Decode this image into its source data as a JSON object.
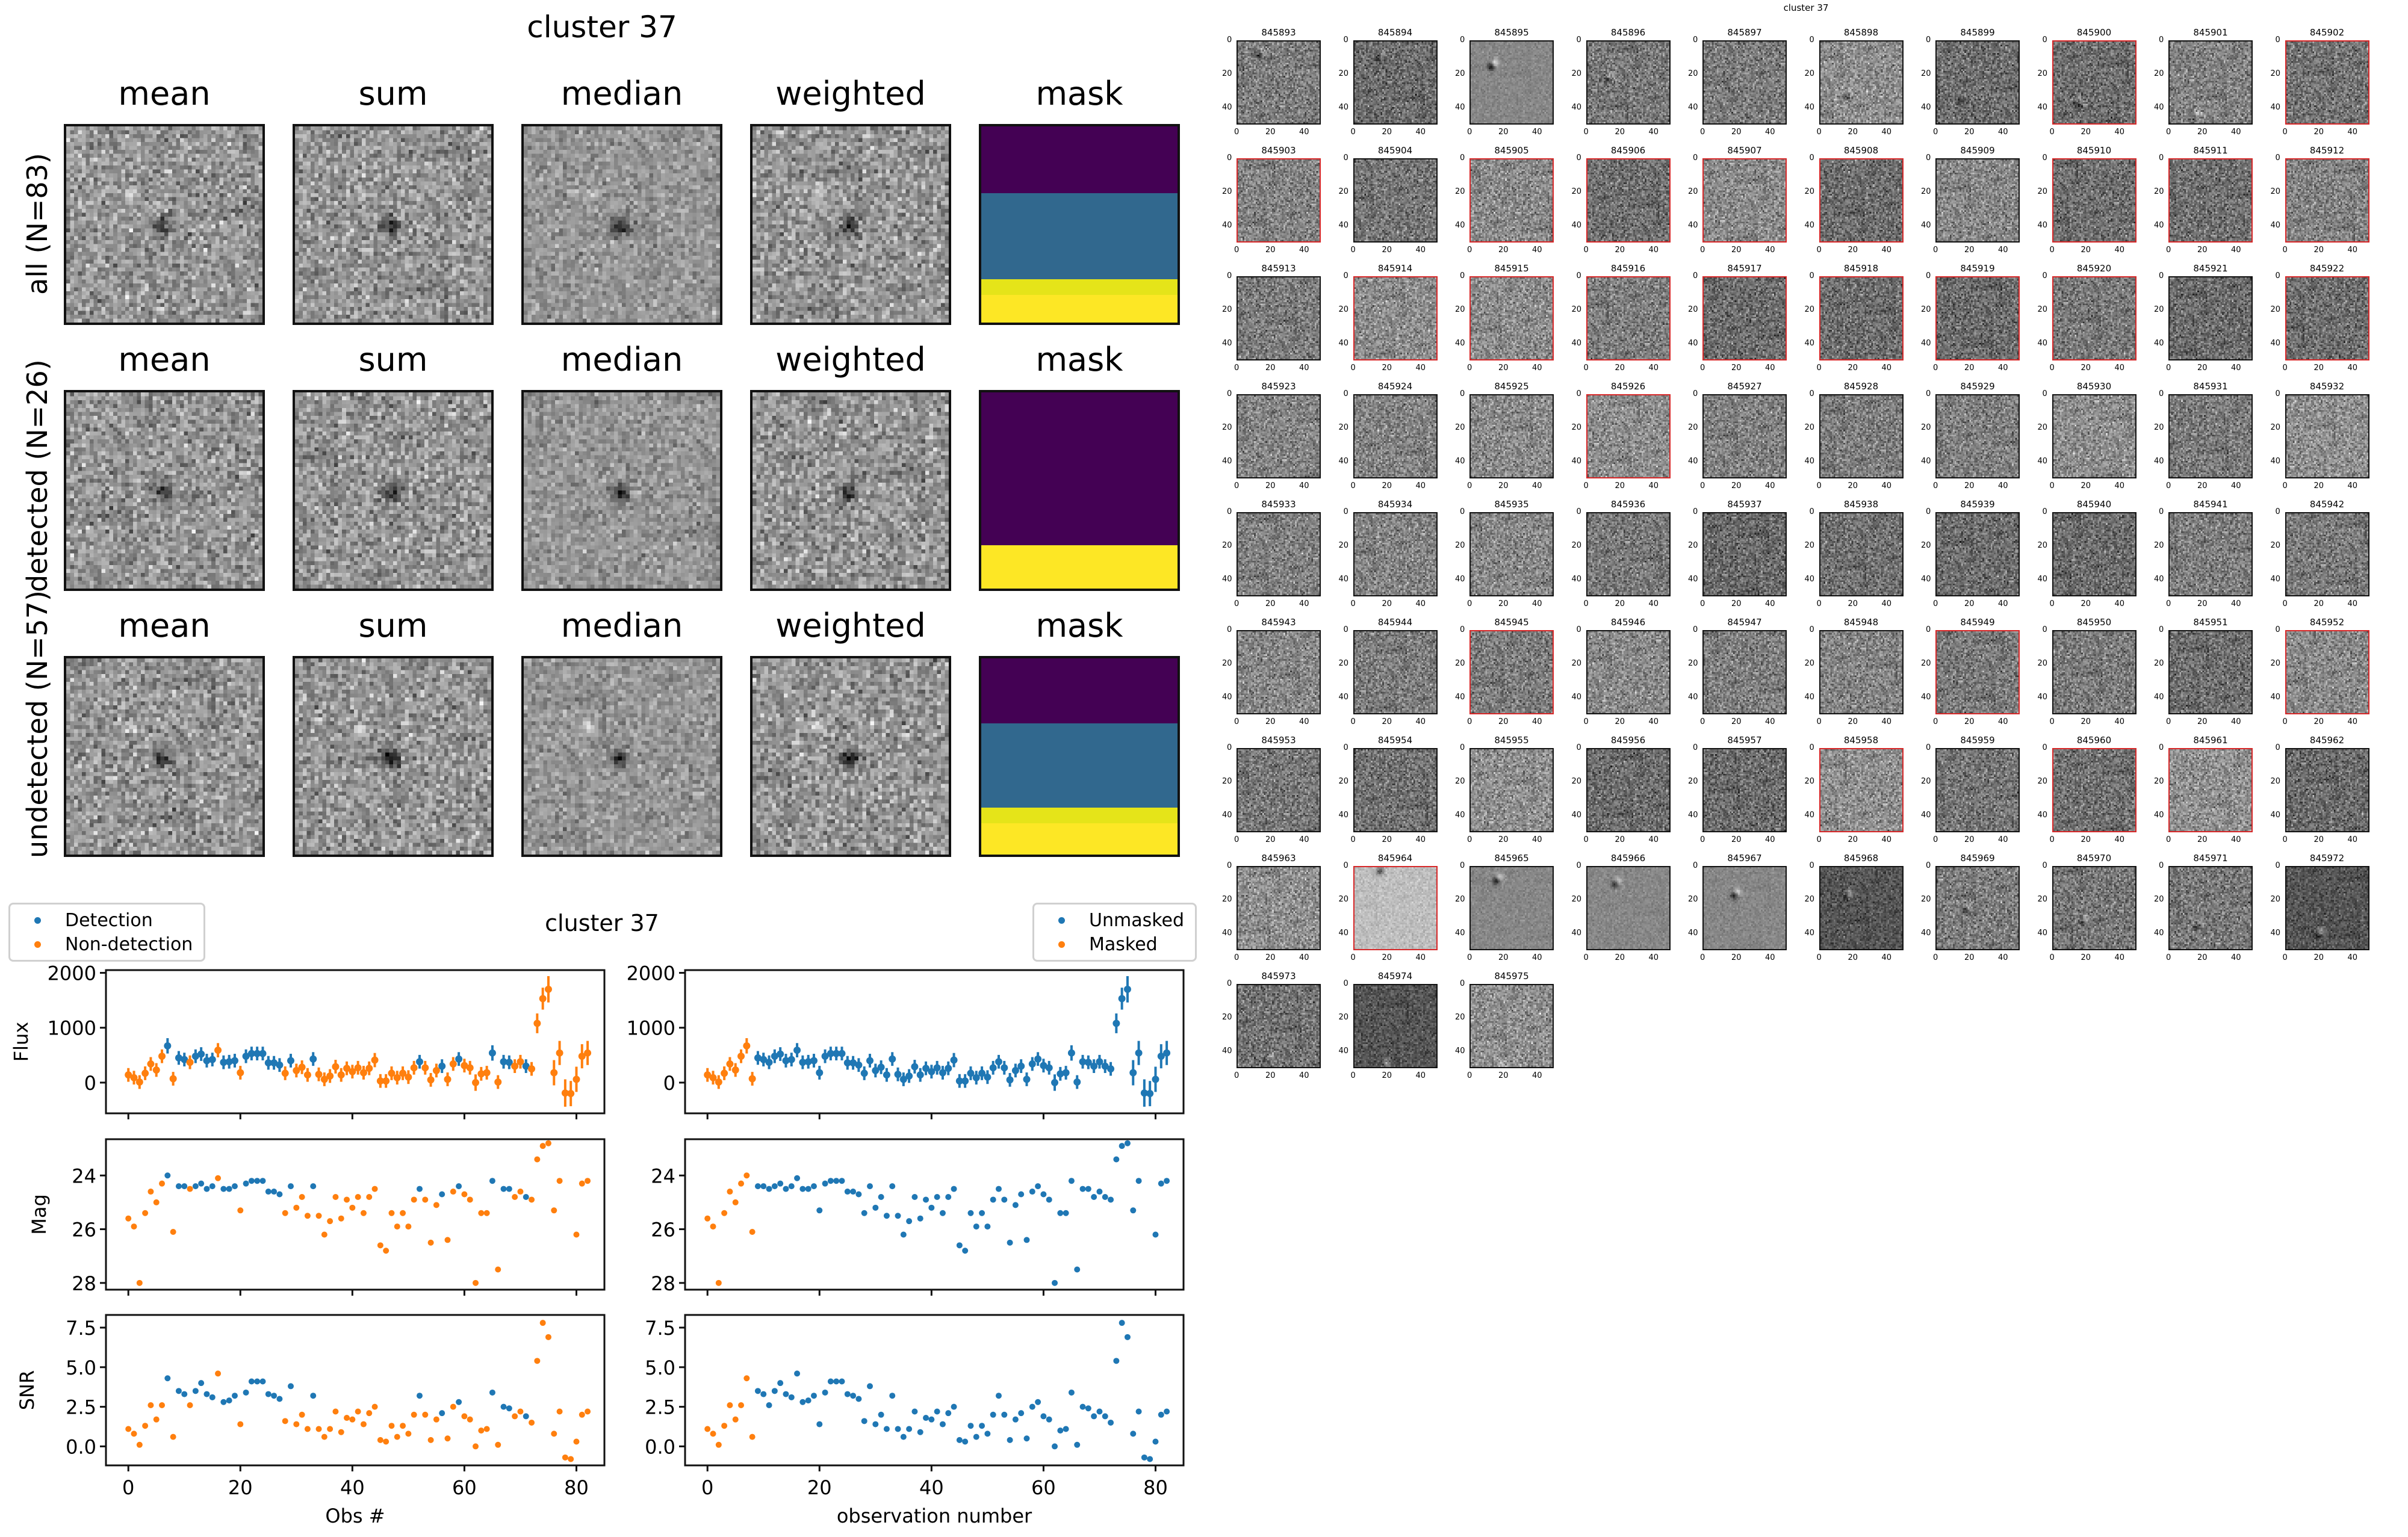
{
  "stack_figure": {
    "title": "cluster 37",
    "column_titles": [
      "mean",
      "sum",
      "median",
      "weighted",
      "mask"
    ],
    "rows": [
      {
        "label": "all (N=83)",
        "mask_bands": [
          {
            "color": "#440154",
            "fraction": 0.34
          },
          {
            "color": "#31688e",
            "fraction": 0.44
          },
          {
            "color": "#e5e419",
            "fraction": 0.08
          },
          {
            "color": "#fde725",
            "fraction": 0.14
          }
        ]
      },
      {
        "label": "detected (N=26)",
        "mask_bands": [
          {
            "color": "#440154",
            "fraction": 0.78
          },
          {
            "color": "#fde725",
            "fraction": 0.22
          }
        ]
      },
      {
        "label": "undetected (N=57)",
        "mask_bands": [
          {
            "color": "#440154",
            "fraction": 0.33
          },
          {
            "color": "#31688e",
            "fraction": 0.43
          },
          {
            "color": "#e5e419",
            "fraction": 0.08
          },
          {
            "color": "#fde725",
            "fraction": 0.16
          }
        ]
      }
    ]
  },
  "thumbnail_grid": {
    "title": "cluster 37",
    "axis_ticks": [
      "0",
      "20",
      "40"
    ],
    "first_id": 845893,
    "ids": [
      "845893",
      "845894",
      "845895",
      "845896",
      "845897",
      "845898",
      "845899",
      "845900",
      "845901",
      "845902",
      "845903",
      "845904",
      "845905",
      "845906",
      "845907",
      "845908",
      "845909",
      "845910",
      "845911",
      "845912",
      "845913",
      "845914",
      "845915",
      "845916",
      "845917",
      "845918",
      "845919",
      "845920",
      "845921",
      "845922",
      "845923",
      "845924",
      "845925",
      "845926",
      "845927",
      "845928",
      "845929",
      "845930",
      "845931",
      "845932",
      "845933",
      "845934",
      "845935",
      "845936",
      "845937",
      "845938",
      "845939",
      "845940",
      "845941",
      "845942",
      "845943",
      "845944",
      "845945",
      "845946",
      "845947",
      "845948",
      "845949",
      "845950",
      "845951",
      "845952",
      "845953",
      "845954",
      "845955",
      "845956",
      "845957",
      "845958",
      "845959",
      "845960",
      "845961",
      "845962",
      "845963",
      "845964",
      "845965",
      "845966",
      "845967",
      "845968",
      "845969",
      "845970",
      "845971",
      "845972",
      "845973",
      "845974",
      "845975"
    ],
    "masked_ids": [
      "845900",
      "845902",
      "845903",
      "845905",
      "845906",
      "845907",
      "845908",
      "845910",
      "845911",
      "845912",
      "845914",
      "845915",
      "845916",
      "845917",
      "845918",
      "845919",
      "845920",
      "845922",
      "845926",
      "845945",
      "845949",
      "845952",
      "845958",
      "845960",
      "845961",
      "845964"
    ],
    "highlight_color": "#d62728"
  },
  "chart_data": [
    {
      "type": "scatter",
      "title": "cluster 37",
      "panels": [
        "Flux",
        "Mag",
        "SNR"
      ],
      "xlabel": "Obs #",
      "xlim": [
        -4,
        85
      ],
      "xticks": [
        0,
        20,
        40,
        60,
        80
      ],
      "legend": {
        "placement": "top-left",
        "entries": [
          {
            "name": "Detection",
            "color": "#1f77b4"
          },
          {
            "name": "Non-detection",
            "color": "#ff7f0e"
          }
        ]
      },
      "series_split": "detection"
    },
    {
      "type": "scatter",
      "title": "",
      "panels": [
        "Flux",
        "Mag",
        "SNR"
      ],
      "xlabel": "observation number",
      "xlim": [
        -4,
        85
      ],
      "xticks": [
        0,
        20,
        40,
        60,
        80
      ],
      "legend": {
        "placement": "top-right",
        "entries": [
          {
            "name": "Unmasked",
            "color": "#1f77b4"
          },
          {
            "name": "Masked",
            "color": "#ff7f0e"
          }
        ]
      },
      "series_split": "masked"
    }
  ],
  "observations": {
    "obs": [
      0,
      1,
      2,
      3,
      4,
      5,
      6,
      7,
      8,
      9,
      10,
      11,
      12,
      13,
      14,
      15,
      16,
      17,
      18,
      19,
      20,
      21,
      22,
      23,
      24,
      25,
      26,
      27,
      28,
      29,
      30,
      31,
      32,
      33,
      34,
      35,
      36,
      37,
      38,
      39,
      40,
      41,
      42,
      43,
      44,
      45,
      46,
      47,
      48,
      49,
      50,
      51,
      52,
      53,
      54,
      55,
      56,
      57,
      58,
      59,
      60,
      61,
      62,
      63,
      64,
      65,
      66,
      67,
      68,
      69,
      70,
      71,
      72,
      73,
      74,
      75,
      76,
      77,
      78,
      79,
      80,
      81,
      82
    ],
    "flux": [
      140,
      90,
      10,
      170,
      340,
      230,
      480,
      670,
      70,
      450,
      420,
      370,
      480,
      520,
      400,
      420,
      590,
      370,
      380,
      400,
      180,
      480,
      530,
      530,
      530,
      360,
      360,
      320,
      170,
      400,
      220,
      280,
      140,
      430,
      150,
      60,
      120,
      290,
      140,
      260,
      200,
      270,
      180,
      260,
      410,
      30,
      30,
      170,
      90,
      170,
      100,
      270,
      380,
      270,
      50,
      220,
      300,
      60,
      340,
      430,
      310,
      270,
      0,
      160,
      180,
      540,
      10,
      380,
      370,
      300,
      380,
      300,
      250,
      1080,
      1530,
      1700,
      180,
      540,
      -190,
      -200,
      60,
      480,
      540
    ],
    "flux_err": [
      125,
      125,
      125,
      125,
      125,
      125,
      125,
      140,
      125,
      125,
      125,
      125,
      125,
      125,
      125,
      125,
      130,
      125,
      125,
      125,
      125,
      125,
      125,
      125,
      125,
      125,
      125,
      125,
      125,
      125,
      125,
      125,
      125,
      125,
      125,
      125,
      125,
      125,
      125,
      125,
      125,
      125,
      125,
      125,
      130,
      125,
      125,
      125,
      125,
      125,
      125,
      125,
      125,
      125,
      125,
      125,
      125,
      125,
      125,
      125,
      125,
      125,
      150,
      125,
      125,
      140,
      125,
      125,
      125,
      125,
      125,
      125,
      125,
      180,
      200,
      240,
      230,
      220,
      250,
      230,
      230,
      220,
      220
    ],
    "mag": [
      25.6,
      25.9,
      28.0,
      25.4,
      24.6,
      25.0,
      24.3,
      24.0,
      26.1,
      24.4,
      24.4,
      24.5,
      24.4,
      24.3,
      24.5,
      24.4,
      24.1,
      24.5,
      24.5,
      24.4,
      25.3,
      24.3,
      24.2,
      24.2,
      24.2,
      24.6,
      24.6,
      24.7,
      25.4,
      24.4,
      25.2,
      24.8,
      25.5,
      24.4,
      25.5,
      26.2,
      25.7,
      24.8,
      25.6,
      24.9,
      25.2,
      24.8,
      25.4,
      24.8,
      24.5,
      26.6,
      26.8,
      25.4,
      25.9,
      25.4,
      25.9,
      24.9,
      24.5,
      24.9,
      26.5,
      25.1,
      24.7,
      26.4,
      24.6,
      24.4,
      24.7,
      24.9,
      28.0,
      25.4,
      25.4,
      24.2,
      27.5,
      24.5,
      24.5,
      24.8,
      24.6,
      24.8,
      24.9,
      23.4,
      22.9,
      22.8,
      25.3,
      24.2,
      null,
      null,
      26.2,
      24.3,
      24.2
    ],
    "snr": [
      1.1,
      0.8,
      0.1,
      1.3,
      2.6,
      1.7,
      2.6,
      4.3,
      0.6,
      3.5,
      3.3,
      2.6,
      3.5,
      4.0,
      3.3,
      3.1,
      4.6,
      2.8,
      2.9,
      3.2,
      1.4,
      3.4,
      4.1,
      4.1,
      4.1,
      3.3,
      3.2,
      3.0,
      1.6,
      3.8,
      1.4,
      2.0,
      1.1,
      3.2,
      1.1,
      0.6,
      1.1,
      2.2,
      0.9,
      1.8,
      1.7,
      2.2,
      1.4,
      2.1,
      2.5,
      0.4,
      0.3,
      1.3,
      0.6,
      1.3,
      0.8,
      2.0,
      3.2,
      2.0,
      0.4,
      1.7,
      2.1,
      0.5,
      2.5,
      2.8,
      1.9,
      1.7,
      0.0,
      1.0,
      1.1,
      3.4,
      0.1,
      2.5,
      2.4,
      1.9,
      2.2,
      1.9,
      1.5,
      5.4,
      7.8,
      6.9,
      0.8,
      2.2,
      -0.7,
      -0.8,
      0.3,
      2.0,
      2.2
    ],
    "detected": [
      7,
      9,
      10,
      12,
      13,
      14,
      15,
      17,
      18,
      19,
      21,
      22,
      23,
      24,
      25,
      26,
      27,
      29,
      33,
      52,
      56,
      59,
      65,
      67,
      68,
      71
    ],
    "masked": [
      0,
      1,
      2,
      3,
      4,
      5,
      6,
      7,
      8
    ]
  },
  "panel_axes": {
    "Flux": {
      "ylabel": "Flux",
      "ylim": [
        -560,
        2050
      ],
      "yticks": [
        0,
        1000,
        2000
      ]
    },
    "Mag": {
      "ylabel": "Mag",
      "ylim": [
        28.25,
        22.65
      ],
      "yticks": [
        24,
        26,
        28
      ],
      "inverted": true
    },
    "SNR": {
      "ylabel": "SNR",
      "ylim": [
        -1.2,
        8.3
      ],
      "yticks": [
        0.0,
        2.5,
        5.0,
        7.5
      ],
      "tick_format": "0.0"
    }
  },
  "colors": {
    "blue": "#1f77b4",
    "orange": "#ff7f0e"
  }
}
